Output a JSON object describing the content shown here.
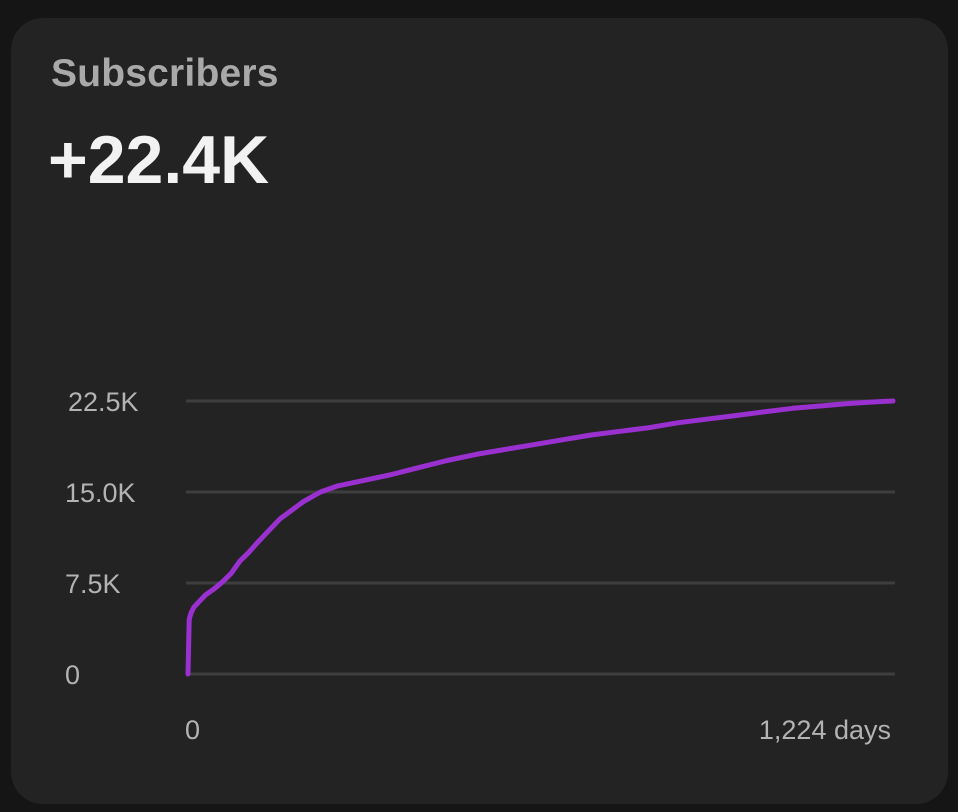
{
  "card": {
    "title": "Subscribers",
    "value": "+22.4K"
  },
  "chart_data": {
    "type": "line",
    "x_label_start": "0",
    "x_label_end": "1,224 days",
    "xlim": [
      0,
      1224
    ],
    "ylim": [
      0,
      22500
    ],
    "y_ticks": [
      {
        "value": 0,
        "label": "0"
      },
      {
        "value": 7500,
        "label": "7.5K"
      },
      {
        "value": 15000,
        "label": "15.0K"
      },
      {
        "value": 22500,
        "label": "22.5K"
      }
    ],
    "grid": true,
    "line_color": "#9b30d0",
    "grid_color": "#3e3e3e",
    "series": [
      {
        "x": [
          0,
          2,
          5,
          10,
          20,
          30,
          45,
          60,
          75,
          90,
          105,
          120,
          140,
          160,
          180,
          200,
          230,
          260,
          300,
          350,
          400,
          450,
          500,
          550,
          600,
          650,
          700,
          750,
          800,
          850,
          900,
          950,
          1000,
          1050,
          1100,
          1150,
          1200,
          1224
        ],
        "y": [
          0,
          4500,
          5000,
          5500,
          6000,
          6500,
          7000,
          7600,
          8300,
          9300,
          10000,
          10800,
          11800,
          12800,
          13500,
          14200,
          15000,
          15500,
          15900,
          16400,
          17000,
          17600,
          18100,
          18500,
          18900,
          19300,
          19700,
          20000,
          20300,
          20700,
          21000,
          21300,
          21600,
          21900,
          22100,
          22300,
          22450,
          22500
        ]
      }
    ]
  }
}
